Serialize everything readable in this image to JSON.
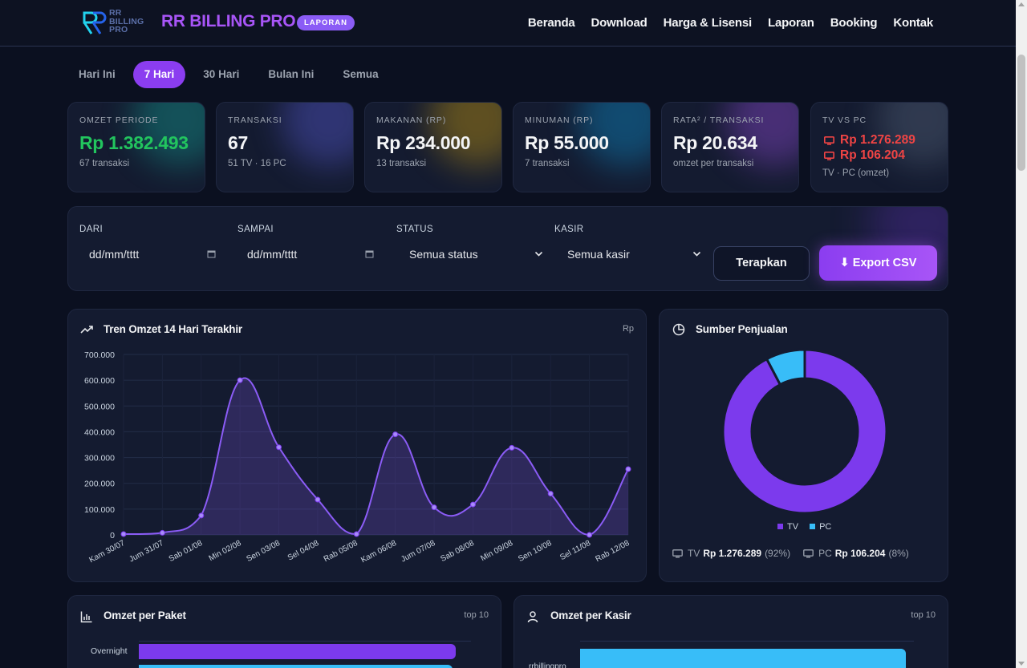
{
  "nav": {
    "logo_lines": [
      "RR",
      "BILLING",
      "PRO"
    ],
    "brand": "RR BILLING PRO",
    "badge": "LAPORAN",
    "links": [
      "Beranda",
      "Download",
      "Harga & Lisensi",
      "Laporan",
      "Booking",
      "Kontak"
    ]
  },
  "tabs": [
    {
      "label": "Hari Ini",
      "active": false
    },
    {
      "label": "7 Hari",
      "active": true
    },
    {
      "label": "30 Hari",
      "active": false
    },
    {
      "label": "Bulan Ini",
      "active": false
    },
    {
      "label": "Semua",
      "active": false
    }
  ],
  "stats": [
    {
      "label": "OMZET PERIODE",
      "value": "Rp 1.382.493",
      "sub": "67 transaksi",
      "color": "#22c55e"
    },
    {
      "label": "TRANSAKSI",
      "value": "67",
      "sub": "51 TV · 16 PC",
      "color": "#f3f4f6"
    },
    {
      "label": "MAKANAN (RP)",
      "value": "Rp 234.000",
      "sub": "13 transaksi",
      "color": "#f3f4f6"
    },
    {
      "label": "MINUMAN (RP)",
      "value": "Rp 55.000",
      "sub": "7 transaksi",
      "color": "#f3f4f6"
    },
    {
      "label": "RATA² / TRANSAKSI",
      "value": "Rp 20.634",
      "sub": "omzet per transaksi",
      "color": "#f3f4f6"
    }
  ],
  "tvpc": {
    "label": "TV VS PC",
    "tv_value": "Rp 1.276.289",
    "pc_value": "Rp 106.204",
    "sub": "TV · PC (omzet)"
  },
  "filter": {
    "from_label": "DARI",
    "from_placeholder": "dd/mm/tttt",
    "to_label": "SAMPAI",
    "to_placeholder": "dd/mm/tttt",
    "status_label": "STATUS",
    "status_value": "Semua status",
    "cashier_label": "KASIR",
    "cashier_value": "Semua kasir",
    "apply": "Terapkan",
    "export": "⬇ Export CSV"
  },
  "trend": {
    "title": "Tren Omzet 14 Hari Terakhir",
    "unit": "Rp"
  },
  "source": {
    "title": "Sumber Penjualan",
    "legend": [
      "TV",
      "PC"
    ],
    "tv_label": "TV",
    "tv_value": "Rp 1.276.289",
    "tv_pct": "(92%)",
    "pc_label": "PC",
    "pc_value": "Rp 106.204",
    "pc_pct": "(8%)"
  },
  "paket": {
    "title": "Omzet per Paket",
    "tag": "top 10",
    "first_label": "Overnight"
  },
  "kasir": {
    "title": "Omzet per Kasir",
    "tag": "top 10",
    "first_label": "rrbillingpro"
  },
  "chart_data": [
    {
      "type": "area",
      "title": "Tren Omzet 14 Hari Terakhir",
      "ylabel": "Rp",
      "categories": [
        "Kam 30/07",
        "Jum 31/07",
        "Sab 01/08",
        "Min 02/08",
        "Sen 03/08",
        "Sel 04/08",
        "Rab 05/08",
        "Kam 06/08",
        "Jum 07/08",
        "Sab 08/08",
        "Min 09/08",
        "Sen 10/08",
        "Sel 11/08",
        "Rab 12/08"
      ],
      "values": [
        3000,
        8000,
        75000,
        600000,
        340000,
        137000,
        3000,
        390000,
        107000,
        118000,
        338000,
        160000,
        0,
        255000
      ],
      "yticks": [
        "0",
        "100.000",
        "200.000",
        "300.000",
        "400.000",
        "500.000",
        "600.000",
        "700.000"
      ],
      "ylim": [
        0,
        700000
      ],
      "color": "#8b5cf6",
      "grid": true
    },
    {
      "type": "pie",
      "title": "Sumber Penjualan",
      "labels": [
        "TV",
        "PC"
      ],
      "values": [
        1276289,
        106204
      ],
      "colors": [
        "#7c3aed",
        "#38bdf8"
      ]
    }
  ]
}
